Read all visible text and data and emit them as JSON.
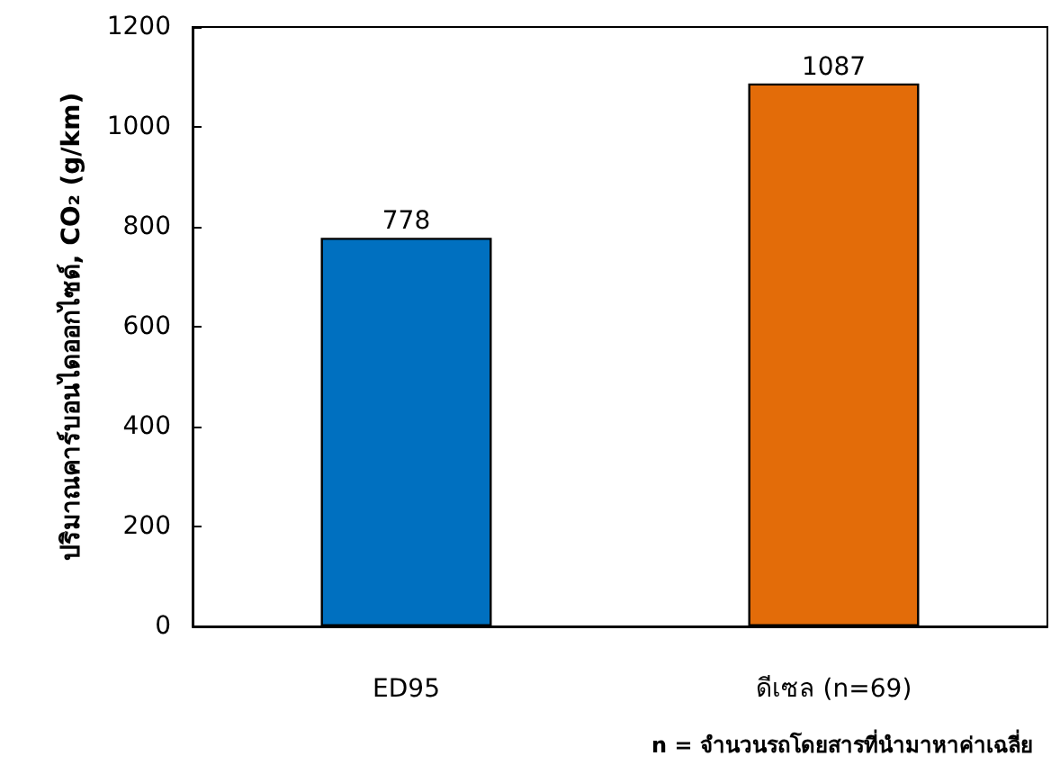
{
  "chart_data": {
    "type": "bar",
    "ylabel": "ปริมาณคาร์บอนไดออกไซด์, CO₂ (g/km)",
    "categories": [
      "ED95",
      "ดีเซล (n=69)"
    ],
    "values": [
      778,
      1087
    ],
    "colors": [
      "#0070c0",
      "#e36c09"
    ],
    "ylim": [
      0,
      1200
    ],
    "yticks": [
      0,
      200,
      400,
      600,
      800,
      1000,
      1200
    ],
    "data_labels": true,
    "grid": false,
    "annotations": [
      "n = จำนวนรถโดยสารที่นำมาหาค่าเฉลี่ย"
    ]
  }
}
